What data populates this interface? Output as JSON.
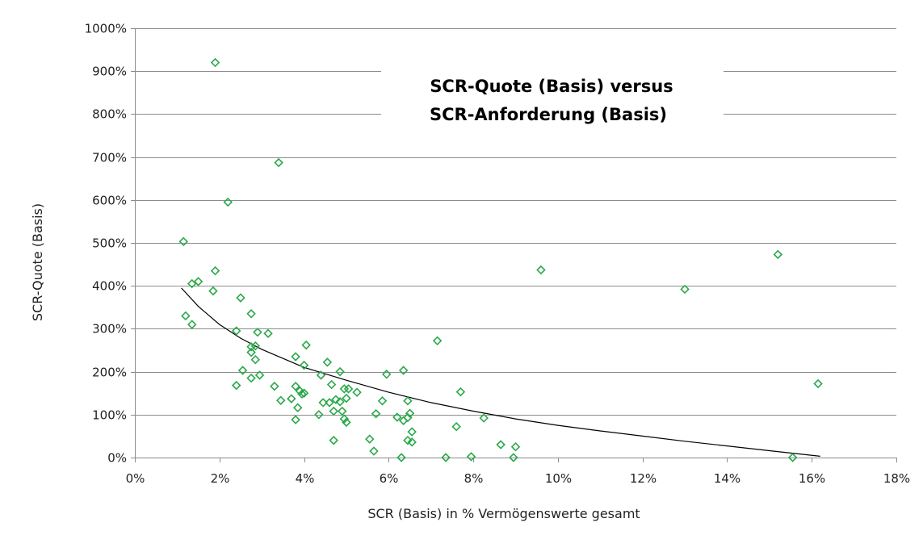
{
  "chart_data": {
    "type": "scatter",
    "title_lines": [
      "SCR-Quote (Basis) versus",
      "SCR-Anforderung (Basis)"
    ],
    "xlabel": "SCR (Basis) in % Vermögenswerte gesamt",
    "ylabel": "SCR-Quote (Basis)",
    "xlim": [
      0,
      18
    ],
    "ylim": [
      0,
      1000
    ],
    "x_ticks": [
      {
        "value": 0,
        "label": "0%"
      },
      {
        "value": 2,
        "label": "2%"
      },
      {
        "value": 4,
        "label": "4%"
      },
      {
        "value": 6,
        "label": "6%"
      },
      {
        "value": 8,
        "label": "8%"
      },
      {
        "value": 10,
        "label": "10%"
      },
      {
        "value": 12,
        "label": "12%"
      },
      {
        "value": 14,
        "label": "14%"
      },
      {
        "value": 16,
        "label": "16%"
      },
      {
        "value": 18,
        "label": "18%"
      }
    ],
    "y_ticks": [
      {
        "value": 0,
        "label": "0%"
      },
      {
        "value": 100,
        "label": "100%"
      },
      {
        "value": 200,
        "label": "200%"
      },
      {
        "value": 300,
        "label": "300%"
      },
      {
        "value": 400,
        "label": "400%"
      },
      {
        "value": 500,
        "label": "500%"
      },
      {
        "value": 600,
        "label": "600%"
      },
      {
        "value": 700,
        "label": "700%"
      },
      {
        "value": 800,
        "label": "800%"
      },
      {
        "value": 900,
        "label": "900%"
      },
      {
        "value": 1000,
        "label": "1000%"
      }
    ],
    "grid": "horizontal",
    "legend": "none",
    "marker": "diamond-open",
    "marker_color": "#2aa84a",
    "trend_color": "#000000",
    "points": [
      [
        1.9,
        920
      ],
      [
        3.4,
        687
      ],
      [
        2.2,
        595
      ],
      [
        1.15,
        503
      ],
      [
        1.9,
        435
      ],
      [
        1.5,
        410
      ],
      [
        1.35,
        405
      ],
      [
        1.85,
        388
      ],
      [
        2.5,
        372
      ],
      [
        2.75,
        335
      ],
      [
        1.2,
        330
      ],
      [
        1.35,
        310
      ],
      [
        2.4,
        295
      ],
      [
        2.9,
        292
      ],
      [
        3.15,
        289
      ],
      [
        2.85,
        260
      ],
      [
        2.75,
        258
      ],
      [
        4.05,
        262
      ],
      [
        2.75,
        245
      ],
      [
        3.8,
        235
      ],
      [
        2.85,
        228
      ],
      [
        4.55,
        222
      ],
      [
        4.0,
        215
      ],
      [
        2.55,
        203
      ],
      [
        4.85,
        200
      ],
      [
        4.4,
        192
      ],
      [
        2.95,
        192
      ],
      [
        2.75,
        185
      ],
      [
        2.4,
        168
      ],
      [
        3.3,
        166
      ],
      [
        3.8,
        166
      ],
      [
        4.65,
        170
      ],
      [
        4.95,
        160
      ],
      [
        5.05,
        160
      ],
      [
        5.25,
        152
      ],
      [
        3.9,
        155
      ],
      [
        4.0,
        150
      ],
      [
        3.95,
        148
      ],
      [
        4.75,
        135
      ],
      [
        5.0,
        138
      ],
      [
        4.85,
        130
      ],
      [
        3.7,
        137
      ],
      [
        3.45,
        133
      ],
      [
        4.45,
        128
      ],
      [
        4.6,
        128
      ],
      [
        3.85,
        116
      ],
      [
        4.7,
        108
      ],
      [
        4.9,
        108
      ],
      [
        4.35,
        100
      ],
      [
        4.95,
        90
      ],
      [
        5.0,
        82
      ],
      [
        3.8,
        88
      ],
      [
        4.7,
        40
      ],
      [
        5.55,
        43
      ],
      [
        5.65,
        15
      ],
      [
        5.7,
        102
      ],
      [
        5.85,
        132
      ],
      [
        5.95,
        194
      ],
      [
        6.2,
        94
      ],
      [
        6.35,
        203
      ],
      [
        6.45,
        132
      ],
      [
        6.5,
        103
      ],
      [
        6.35,
        86
      ],
      [
        6.45,
        93
      ],
      [
        6.55,
        60
      ],
      [
        6.45,
        40
      ],
      [
        6.55,
        36
      ],
      [
        6.3,
        0
      ],
      [
        7.15,
        272
      ],
      [
        7.6,
        72
      ],
      [
        7.7,
        153
      ],
      [
        7.35,
        0
      ],
      [
        7.95,
        2
      ],
      [
        8.25,
        92
      ],
      [
        8.65,
        30
      ],
      [
        8.95,
        0
      ],
      [
        9.0,
        25
      ],
      [
        9.6,
        437
      ],
      [
        13.0,
        392
      ],
      [
        15.2,
        473
      ],
      [
        16.15,
        172
      ],
      [
        15.55,
        0
      ]
    ],
    "trendline": {
      "type": "logarithmic",
      "x_range": [
        1.1,
        16.2
      ],
      "points": [
        [
          1.1,
          395
        ],
        [
          1.5,
          352
        ],
        [
          2,
          310
        ],
        [
          2.5,
          278
        ],
        [
          3,
          252
        ],
        [
          4,
          210
        ],
        [
          5,
          180
        ],
        [
          6,
          152
        ],
        [
          7,
          128
        ],
        [
          8,
          108
        ],
        [
          9,
          90
        ],
        [
          10,
          75
        ],
        [
          11,
          62
        ],
        [
          12,
          50
        ],
        [
          13,
          38
        ],
        [
          14,
          27
        ],
        [
          15,
          16
        ],
        [
          16.2,
          3
        ]
      ]
    }
  }
}
